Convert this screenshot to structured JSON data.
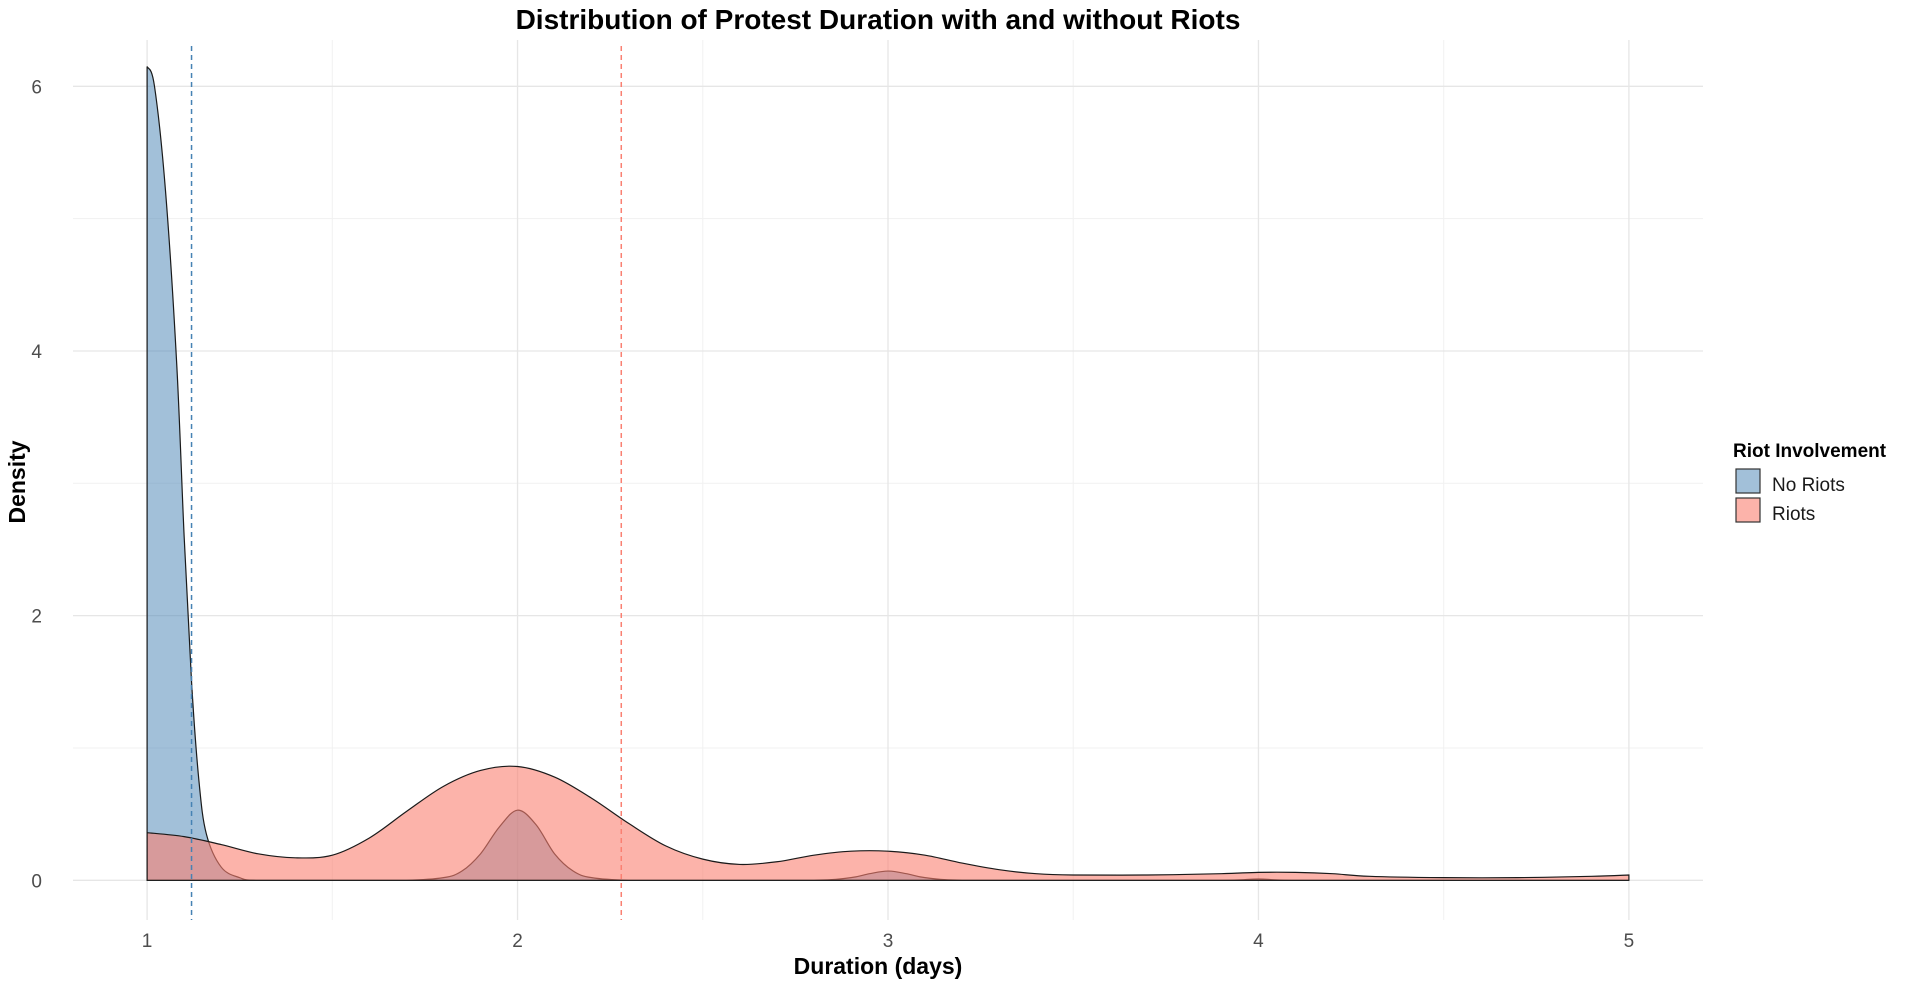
{
  "chart_data": {
    "type": "area",
    "subtype": "density",
    "title": "Distribution of Protest Duration with and without Riots",
    "xlabel": "Duration (days)",
    "ylabel": "Density",
    "xlim": [
      0.8,
      5.2
    ],
    "ylim": [
      -0.3,
      6.35
    ],
    "x_ticks": [
      1,
      2,
      3,
      4,
      5
    ],
    "y_ticks": [
      0,
      2,
      4,
      6
    ],
    "grid": true,
    "legend": {
      "title": "Riot Involvement",
      "position": "right",
      "entries": [
        {
          "label": "No Riots",
          "color": "#4682B4"
        },
        {
          "label": "Riots",
          "color": "#FA8072"
        }
      ]
    },
    "series": [
      {
        "name": "No Riots",
        "color": "#4682B4",
        "fill_opacity": 0.5,
        "x": [
          1.0,
          1.02,
          1.05,
          1.08,
          1.1,
          1.12,
          1.14,
          1.16,
          1.2,
          1.25,
          1.3,
          1.5,
          1.7,
          1.8,
          1.85,
          1.9,
          1.95,
          2.0,
          2.05,
          2.1,
          2.15,
          2.2,
          2.3,
          2.5,
          2.8,
          2.9,
          2.95,
          3.0,
          3.05,
          3.1,
          3.2,
          3.5,
          3.9,
          4.0,
          4.1,
          4.5,
          5.0
        ],
        "y": [
          6.15,
          6.0,
          5.2,
          3.9,
          2.6,
          1.5,
          0.75,
          0.35,
          0.1,
          0.02,
          0.0,
          0.0,
          0.0,
          0.02,
          0.07,
          0.2,
          0.4,
          0.53,
          0.42,
          0.2,
          0.07,
          0.02,
          0.0,
          0.0,
          0.0,
          0.02,
          0.05,
          0.07,
          0.05,
          0.02,
          0.0,
          0.0,
          0.0,
          0.01,
          0.0,
          0.0,
          0.0
        ],
        "mean": 1.12
      },
      {
        "name": "Riots",
        "color": "#FA8072",
        "fill_opacity": 0.6,
        "x": [
          1.0,
          1.1,
          1.2,
          1.3,
          1.4,
          1.5,
          1.6,
          1.7,
          1.8,
          1.9,
          2.0,
          2.1,
          2.2,
          2.3,
          2.4,
          2.5,
          2.6,
          2.7,
          2.8,
          2.9,
          3.0,
          3.1,
          3.2,
          3.3,
          3.4,
          3.5,
          3.7,
          3.9,
          4.0,
          4.1,
          4.2,
          4.3,
          4.5,
          4.7,
          4.9,
          5.0
        ],
        "y": [
          0.36,
          0.33,
          0.27,
          0.2,
          0.17,
          0.19,
          0.32,
          0.52,
          0.71,
          0.83,
          0.86,
          0.78,
          0.62,
          0.43,
          0.26,
          0.16,
          0.12,
          0.14,
          0.19,
          0.22,
          0.22,
          0.19,
          0.13,
          0.08,
          0.05,
          0.04,
          0.04,
          0.05,
          0.06,
          0.06,
          0.05,
          0.03,
          0.02,
          0.02,
          0.03,
          0.04
        ],
        "mean": 2.28
      }
    ]
  }
}
